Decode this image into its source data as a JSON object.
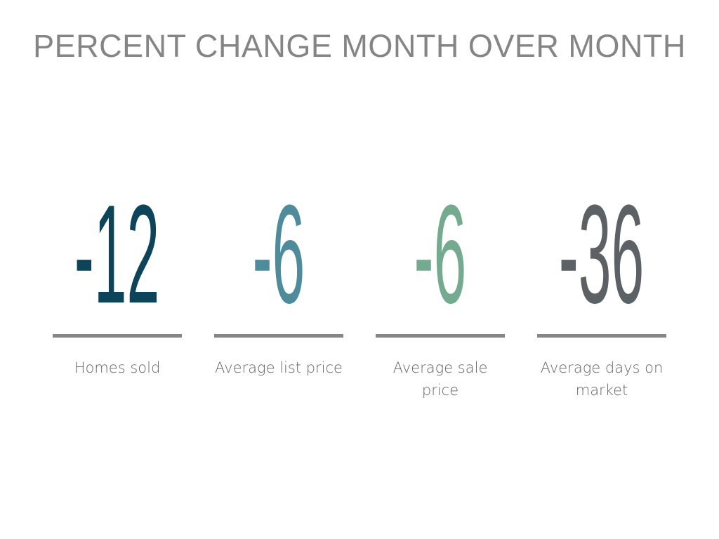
{
  "title": "PERCENT CHANGE MONTH OVER MONTH",
  "stats": [
    {
      "value": "-12",
      "label": "Homes sold",
      "color": "#0d4459"
    },
    {
      "value": "-6",
      "label": "Average list price",
      "color": "#4e8c9c"
    },
    {
      "value": "-6",
      "label": "Average sale price",
      "color": "#74ab90"
    },
    {
      "value": "-36",
      "label": "Average days on market",
      "color": "#5c6166"
    }
  ]
}
